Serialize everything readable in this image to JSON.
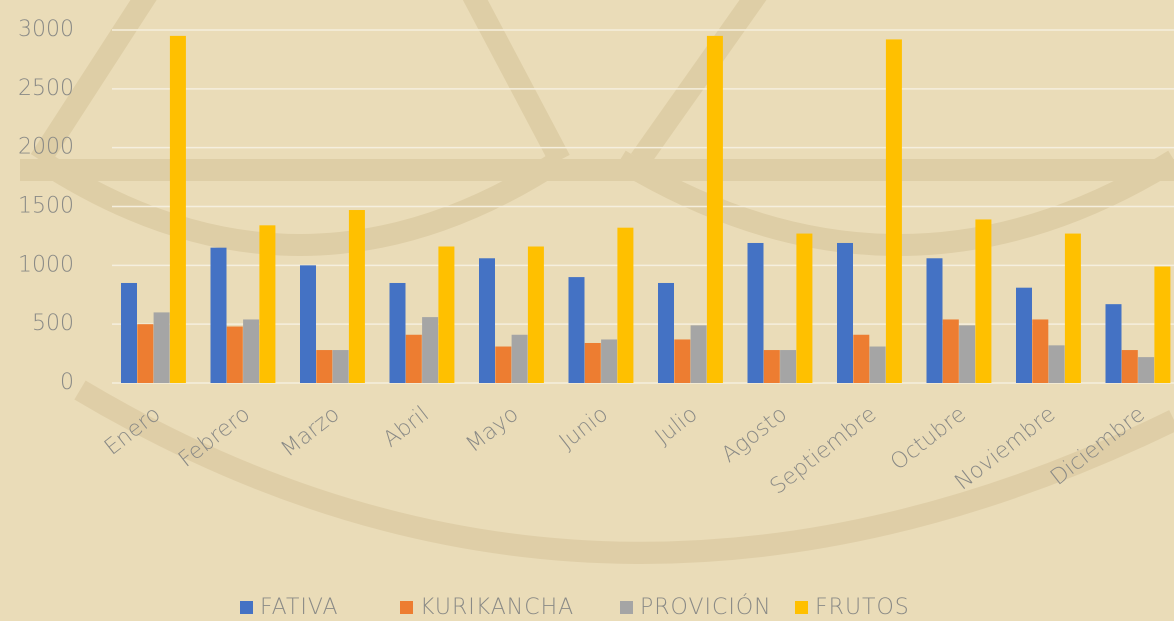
{
  "chart_data": {
    "type": "bar",
    "categories": [
      "Enero",
      "Febrero",
      "Marzo",
      "Abril",
      "Mayo",
      "Junio",
      "Julio",
      "Agosto",
      "Septiembre",
      "Octubre",
      "Noviembre",
      "Diciembre"
    ],
    "series": [
      {
        "name": "FATIVA",
        "color": "#4472c4",
        "values": [
          850,
          1150,
          1000,
          850,
          1060,
          900,
          850,
          1190,
          1190,
          1060,
          810,
          670
        ]
      },
      {
        "name": "KURIKANCHA",
        "color": "#ed7d31",
        "values": [
          500,
          480,
          280,
          410,
          310,
          340,
          370,
          280,
          410,
          540,
          540,
          280
        ]
      },
      {
        "name": "PROVICIÓN",
        "color": "#a5a5a5",
        "values": [
          600,
          540,
          280,
          560,
          410,
          370,
          490,
          280,
          310,
          490,
          320,
          220
        ]
      },
      {
        "name": "FRUTOS",
        "color": "#ffc000",
        "values": [
          2950,
          1340,
          1470,
          1160,
          1160,
          1320,
          2950,
          1270,
          2920,
          1390,
          1270,
          990
        ]
      }
    ],
    "ylim": [
      0,
      3000
    ],
    "yticks": [
      0,
      500,
      1000,
      1500,
      2000,
      2500,
      3000
    ],
    "grid": true,
    "legend": "bottom"
  }
}
